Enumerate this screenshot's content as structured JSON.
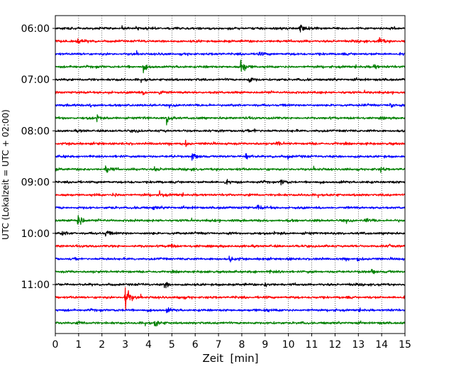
{
  "chart_data": {
    "type": "line",
    "title": "",
    "xlabel": "Zeit  [min]",
    "ylabel": "UTC (Lokalzeit = UTC + 02:00)",
    "xlim": [
      0,
      15
    ],
    "x_ticks": [
      "0",
      "1",
      "2",
      "3",
      "4",
      "5",
      "6",
      "7",
      "8",
      "9",
      "10",
      "11",
      "12",
      "13",
      "14",
      "15"
    ],
    "y_ticks": [
      "06:00",
      "07:00",
      "08:00",
      "09:00",
      "10:00",
      "11:00"
    ],
    "grid": "vertical dotted at each minute",
    "trace_interval_minutes": 15,
    "trace_colors": [
      "#000000",
      "#ff0000",
      "#0000ff",
      "#008000"
    ],
    "series": [
      {
        "start": "06:00",
        "color": "#000000",
        "events": [
          {
            "t": 10.5,
            "amp": 1.0
          },
          {
            "t": 3.5,
            "amp": 0.5
          }
        ]
      },
      {
        "start": "06:15",
        "color": "#ff0000",
        "events": [
          {
            "t": 13.9,
            "amp": 0.9
          },
          {
            "t": 1.0,
            "amp": 0.5
          }
        ]
      },
      {
        "start": "06:30",
        "color": "#0000ff",
        "events": [
          {
            "t": 8.7,
            "amp": 0.5
          }
        ]
      },
      {
        "start": "06:45",
        "color": "#008000",
        "events": [
          {
            "t": 8.0,
            "amp": 2.2
          },
          {
            "t": 3.8,
            "amp": 0.8
          },
          {
            "t": 13.7,
            "amp": 0.6
          }
        ]
      },
      {
        "start": "07:00",
        "color": "#000000",
        "events": [
          {
            "t": 8.3,
            "amp": 0.9
          }
        ]
      },
      {
        "start": "07:15",
        "color": "#ff0000",
        "events": [
          {
            "t": 4.5,
            "amp": 0.6
          },
          {
            "t": 3.8,
            "amp": 0.5
          }
        ]
      },
      {
        "start": "07:30",
        "color": "#0000ff",
        "events": [
          {
            "t": 14.4,
            "amp": 0.6
          },
          {
            "t": 1.5,
            "amp": 0.4
          }
        ]
      },
      {
        "start": "07:45",
        "color": "#008000",
        "events": [
          {
            "t": 4.8,
            "amp": 1.4
          },
          {
            "t": 1.8,
            "amp": 0.6
          }
        ]
      },
      {
        "start": "08:00",
        "color": "#000000",
        "events": [
          {
            "t": 8.5,
            "amp": 0.5
          }
        ]
      },
      {
        "start": "08:15",
        "color": "#ff0000",
        "events": [
          {
            "t": 5.6,
            "amp": 0.6
          },
          {
            "t": 9.5,
            "amp": 0.5
          }
        ]
      },
      {
        "start": "08:30",
        "color": "#0000ff",
        "events": [
          {
            "t": 5.9,
            "amp": 1.0
          },
          {
            "t": 8.2,
            "amp": 0.7
          },
          {
            "t": 10.0,
            "amp": 0.5
          }
        ]
      },
      {
        "start": "08:45",
        "color": "#008000",
        "events": [
          {
            "t": 2.2,
            "amp": 0.9
          },
          {
            "t": 4.3,
            "amp": 0.5
          },
          {
            "t": 14.0,
            "amp": 0.5
          }
        ]
      },
      {
        "start": "09:00",
        "color": "#000000",
        "events": [
          {
            "t": 9.7,
            "amp": 0.6
          },
          {
            "t": 7.3,
            "amp": 0.5
          }
        ]
      },
      {
        "start": "09:15",
        "color": "#ff0000",
        "events": [
          {
            "t": 4.5,
            "amp": 0.8
          },
          {
            "t": 2.5,
            "amp": 0.4
          }
        ]
      },
      {
        "start": "09:30",
        "color": "#0000ff",
        "events": [
          {
            "t": 8.7,
            "amp": 0.8
          },
          {
            "t": 4.2,
            "amp": 0.5
          }
        ]
      },
      {
        "start": "09:45",
        "color": "#008000",
        "events": [
          {
            "t": 1.0,
            "amp": 2.0
          },
          {
            "t": 13.3,
            "amp": 0.5
          }
        ]
      },
      {
        "start": "10:00",
        "color": "#000000",
        "events": [
          {
            "t": 2.2,
            "amp": 0.8
          },
          {
            "t": 0.3,
            "amp": 0.5
          }
        ]
      },
      {
        "start": "10:15",
        "color": "#ff0000",
        "events": [
          {
            "t": 4.9,
            "amp": 0.6
          },
          {
            "t": 14.3,
            "amp": 0.6
          }
        ]
      },
      {
        "start": "10:30",
        "color": "#0000ff",
        "events": [
          {
            "t": 7.5,
            "amp": 0.6
          },
          {
            "t": 13.0,
            "amp": 0.5
          }
        ]
      },
      {
        "start": "10:45",
        "color": "#008000",
        "events": [
          {
            "t": 13.6,
            "amp": 0.6
          },
          {
            "t": 9.2,
            "amp": 0.4
          }
        ]
      },
      {
        "start": "11:00",
        "color": "#000000",
        "events": [
          {
            "t": 4.7,
            "amp": 0.9
          },
          {
            "t": 9.0,
            "amp": 0.5
          }
        ]
      },
      {
        "start": "11:15",
        "color": "#ff0000",
        "events": [
          {
            "t": 3.0,
            "amp": 5.0
          },
          {
            "t": 5.3,
            "amp": 0.4
          }
        ]
      },
      {
        "start": "11:30",
        "color": "#0000ff",
        "events": [
          {
            "t": 4.8,
            "amp": 0.5
          },
          {
            "t": 9.0,
            "amp": 0.6
          }
        ]
      },
      {
        "start": "11:45",
        "color": "#008000",
        "events": [
          {
            "t": 4.3,
            "amp": 1.0
          },
          {
            "t": 1.0,
            "amp": 0.4
          }
        ]
      }
    ]
  }
}
